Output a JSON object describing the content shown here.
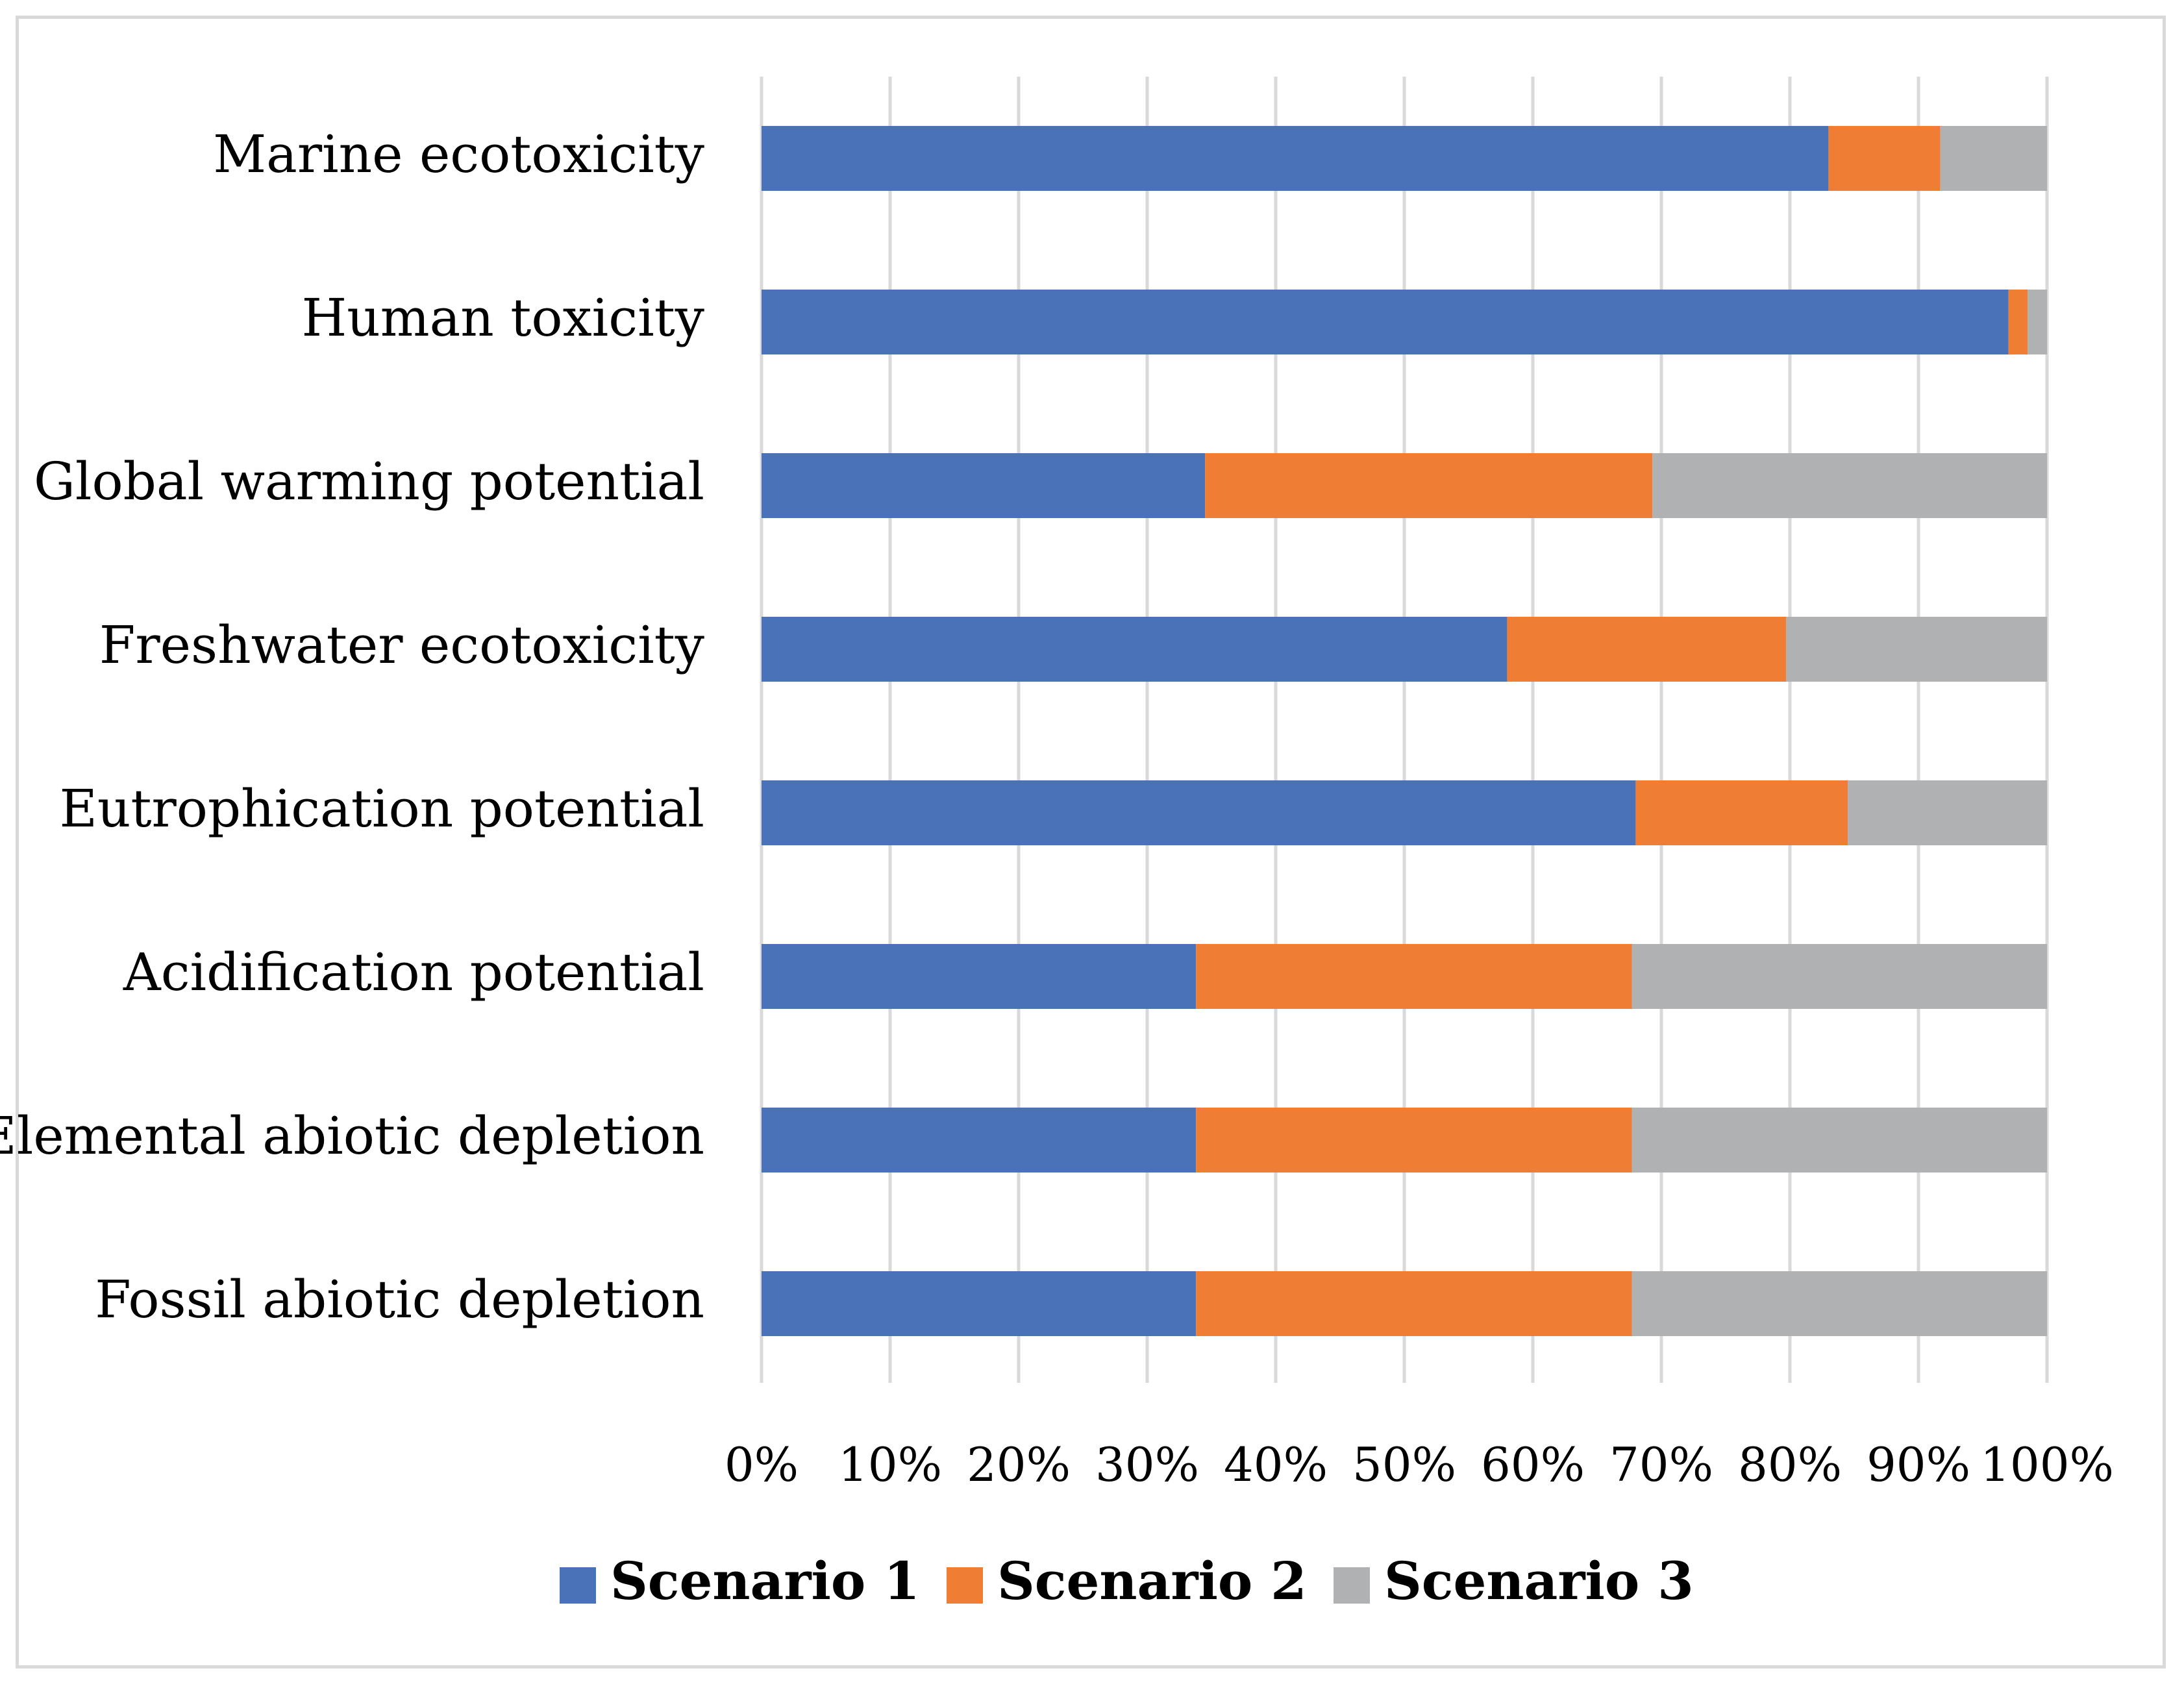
{
  "chart_data": {
    "type": "bar",
    "orientation": "horizontal",
    "stacked": "percent",
    "categories": [
      "Marine ecotoxicity",
      "Human toxicity",
      "Global warming potential",
      "Freshwater ecotoxicity",
      "Eutrophication potential",
      "Acidification potential",
      "Elemental abiotic depletion",
      "Fossil abiotic depletion"
    ],
    "series": [
      {
        "name": "Scenario 1",
        "color": "#4a72b8",
        "values": [
          83,
          97,
          34.5,
          58,
          68,
          33.8,
          33.8,
          33.8
        ]
      },
      {
        "name": "Scenario 2",
        "color": "#ef7d33",
        "values": [
          8.7,
          1.5,
          34.8,
          21.7,
          16.5,
          33.9,
          33.9,
          33.9
        ]
      },
      {
        "name": "Scenario 3",
        "color": "#b0b1b3",
        "values": [
          8.3,
          1.5,
          30.7,
          20.3,
          15.5,
          32.3,
          32.3,
          32.3
        ]
      }
    ],
    "xticks": [
      "0%",
      "10%",
      "20%",
      "30%",
      "40%",
      "50%",
      "60%",
      "70%",
      "80%",
      "90%",
      "100%"
    ],
    "xlim": [
      0,
      100
    ],
    "grid": true,
    "legend": "bottom",
    "title": "",
    "xlabel": "",
    "ylabel": ""
  }
}
